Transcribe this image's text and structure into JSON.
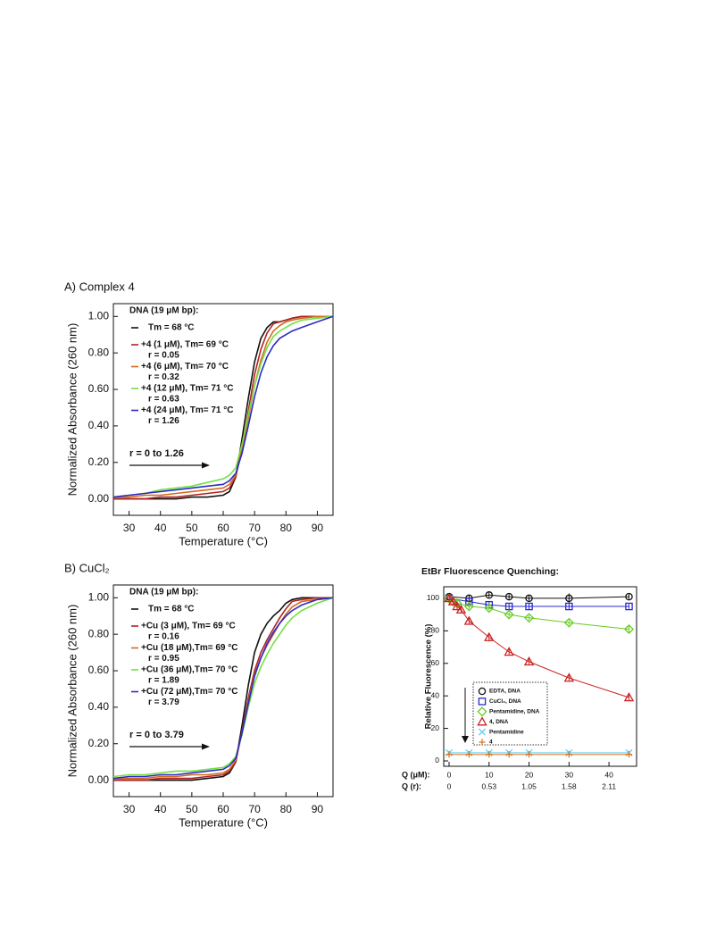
{
  "chart_data": [
    {
      "type": "line",
      "title": "A) Complex 4",
      "xlabel": "Temperature (°C)",
      "ylabel": "Normalized Absorbance (260 nm)",
      "legend_title": "DNA (19 μM bp):",
      "annotation": "r = 0 to 1.26",
      "x": [
        25,
        30,
        35,
        40,
        45,
        50,
        55,
        60,
        62,
        64,
        66,
        68,
        70,
        72,
        74,
        76,
        78,
        80,
        82,
        85,
        90,
        95
      ],
      "xlim": [
        25,
        95
      ],
      "xticks": [
        30,
        40,
        50,
        60,
        70,
        80,
        90
      ],
      "ylim": [
        -0.09,
        1.07
      ],
      "yticks": [
        {
          "value": 0,
          "label": "0.00"
        },
        {
          "value": 0.2,
          "label": "0.20"
        },
        {
          "value": 0.4,
          "label": "0.40"
        },
        {
          "value": 0.6,
          "label": "0.60"
        },
        {
          "value": 0.8,
          "label": "0.80"
        },
        {
          "value": 1,
          "label": "1.00"
        }
      ],
      "series": [
        {
          "name": "Tm = 68 °C",
          "color": "#111111",
          "values": [
            0,
            0,
            0,
            0,
            0,
            0.01,
            0.01,
            0.02,
            0.04,
            0.12,
            0.33,
            0.55,
            0.75,
            0.88,
            0.94,
            0.97,
            0.97,
            0.98,
            0.99,
            1,
            1,
            1
          ]
        },
        {
          "name": "+4 (1 μM), Tm= 69 °C",
          "r": "r = 0.05",
          "color": "#b22222",
          "values": [
            0,
            0,
            0,
            0.01,
            0.01,
            0.02,
            0.03,
            0.04,
            0.06,
            0.12,
            0.28,
            0.48,
            0.68,
            0.82,
            0.91,
            0.96,
            0.97,
            0.98,
            0.99,
            1,
            1,
            1
          ]
        },
        {
          "name": "+4 (6 μM), Tm= 70 °C",
          "r": "r = 0.32",
          "color": "#d2691e",
          "values": [
            0.01,
            0.01,
            0.02,
            0.02,
            0.03,
            0.04,
            0.05,
            0.06,
            0.08,
            0.13,
            0.27,
            0.44,
            0.62,
            0.76,
            0.86,
            0.92,
            0.95,
            0.97,
            0.98,
            0.99,
            1,
            1
          ]
        },
        {
          "name": "+4 (12 μM), Tm= 71 °C",
          "r": "r = 0.63",
          "color": "#72e040",
          "values": [
            0.01,
            0.02,
            0.03,
            0.05,
            0.06,
            0.07,
            0.09,
            0.11,
            0.13,
            0.17,
            0.3,
            0.46,
            0.62,
            0.74,
            0.83,
            0.89,
            0.92,
            0.94,
            0.96,
            0.98,
            0.99,
            1
          ]
        },
        {
          "name": "+4 (24 μM), Tm= 71 °C",
          "r": "r = 1.26",
          "color": "#2b2bc8",
          "values": [
            0.01,
            0.02,
            0.03,
            0.04,
            0.05,
            0.06,
            0.07,
            0.08,
            0.1,
            0.14,
            0.25,
            0.4,
            0.56,
            0.69,
            0.78,
            0.84,
            0.88,
            0.9,
            0.92,
            0.94,
            0.97,
            1
          ]
        }
      ]
    },
    {
      "type": "line",
      "title": "B) CuCl₂",
      "xlabel": "Temperature (°C)",
      "ylabel": "Normalized Absorbance (260 nm)",
      "legend_title": "DNA (19 μM bp):",
      "annotation": "r = 0 to 3.79",
      "x": [
        25,
        30,
        35,
        40,
        45,
        50,
        55,
        60,
        62,
        64,
        66,
        68,
        70,
        72,
        74,
        76,
        78,
        80,
        82,
        85,
        90,
        95
      ],
      "xlim": [
        25,
        95
      ],
      "xticks": [
        30,
        40,
        50,
        60,
        70,
        80,
        90
      ],
      "ylim": [
        -0.09,
        1.07
      ],
      "yticks": [
        {
          "value": 0,
          "label": "0.00"
        },
        {
          "value": 0.2,
          "label": "0.20"
        },
        {
          "value": 0.4,
          "label": "0.40"
        },
        {
          "value": 0.6,
          "label": "0.60"
        },
        {
          "value": 0.8,
          "label": "0.80"
        },
        {
          "value": 1,
          "label": "1.00"
        }
      ],
      "series": [
        {
          "name": "Tm = 68 °C",
          "color": "#111111",
          "values": [
            0,
            0,
            0,
            0,
            0,
            0,
            0.01,
            0.02,
            0.04,
            0.1,
            0.3,
            0.52,
            0.7,
            0.8,
            0.86,
            0.9,
            0.93,
            0.97,
            0.99,
            1,
            1,
            1
          ]
        },
        {
          "name": "+Cu (3 μM), Tm= 69 °C",
          "r": "r = 0.16",
          "color": "#b22222",
          "values": [
            0,
            0,
            0,
            0.01,
            0.01,
            0.01,
            0.02,
            0.03,
            0.05,
            0.1,
            0.27,
            0.45,
            0.6,
            0.7,
            0.77,
            0.83,
            0.89,
            0.94,
            0.98,
            0.99,
            1,
            1
          ]
        },
        {
          "name": "+Cu (18 μM),Tm= 69 °C",
          "r": "r = 0.95",
          "color": "#d2691e",
          "values": [
            0.01,
            0.01,
            0.01,
            0.02,
            0.02,
            0.03,
            0.03,
            0.04,
            0.06,
            0.11,
            0.26,
            0.43,
            0.58,
            0.67,
            0.74,
            0.8,
            0.86,
            0.91,
            0.95,
            0.98,
            0.99,
            1
          ]
        },
        {
          "name": "+Cu (36 μM),Tm= 70 °C",
          "r": "r = 1.89",
          "color": "#72e040",
          "values": [
            0.02,
            0.03,
            0.03,
            0.04,
            0.05,
            0.05,
            0.06,
            0.07,
            0.09,
            0.13,
            0.25,
            0.4,
            0.53,
            0.62,
            0.69,
            0.75,
            0.8,
            0.85,
            0.89,
            0.93,
            0.97,
            1
          ]
        },
        {
          "name": "+Cu (72 μM),Tm= 70 °C",
          "r": "r = 3.79",
          "color": "#2b2bc8",
          "values": [
            0.01,
            0.02,
            0.02,
            0.03,
            0.03,
            0.04,
            0.05,
            0.06,
            0.08,
            0.12,
            0.26,
            0.42,
            0.57,
            0.67,
            0.75,
            0.81,
            0.86,
            0.9,
            0.93,
            0.96,
            0.99,
            1
          ]
        }
      ]
    },
    {
      "type": "scatter",
      "title": "EtBr Fluorescence Quenching:",
      "ylabel": "Relative Fluorescence (%)",
      "xlabel": "Q (μM):",
      "x2label": "Q (r):",
      "xlim": [
        -1.34,
        46.9
      ],
      "xticks": [
        0,
        10,
        20,
        30,
        40
      ],
      "x2ticks": [
        {
          "value": 0,
          "label": "0"
        },
        {
          "value": 10,
          "label": "0.53"
        },
        {
          "value": 20,
          "label": "1.05"
        },
        {
          "value": 30,
          "label": "1.58"
        },
        {
          "value": 40,
          "label": "2.11"
        }
      ],
      "ylim": [
        -3.3,
        107.1
      ],
      "yticks": [
        0,
        20,
        40,
        60,
        80,
        100
      ],
      "series": [
        {
          "name": "EDTA, DNA",
          "color": "#111111",
          "marker": "circle",
          "x": [
            0,
            5,
            10,
            15,
            20,
            30,
            45
          ],
          "values": [
            101,
            100,
            102,
            101,
            100,
            100,
            101
          ],
          "errors": [
            2,
            2,
            1.5,
            1.5,
            1.5,
            3,
            1.5
          ]
        },
        {
          "name": "CuCl₂, DNA",
          "color": "#2a2ad0",
          "marker": "square",
          "x": [
            0,
            5,
            10,
            15,
            20,
            30,
            45
          ],
          "values": [
            100,
            98,
            96,
            95,
            95,
            95,
            95
          ],
          "errors": [
            3,
            2,
            2,
            2,
            2,
            2,
            1.5
          ]
        },
        {
          "name": "Pentamidine, DNA",
          "color": "#66cc22",
          "marker": "diamond",
          "x": [
            0,
            1,
            2,
            5,
            10,
            15,
            20,
            30,
            45
          ],
          "values": [
            100,
            98,
            97,
            95,
            94,
            90,
            88,
            85,
            81
          ],
          "errors": [
            2,
            2,
            2,
            1.5,
            1.5,
            1.5,
            1.5,
            1.5,
            2
          ]
        },
        {
          "name": "4, DNA",
          "color": "#cc2222",
          "marker": "triangle",
          "x": [
            0,
            1,
            2,
            3,
            5,
            10,
            15,
            20,
            30,
            45
          ],
          "values": [
            100,
            98,
            95,
            93,
            86,
            76,
            67,
            61,
            51,
            39
          ],
          "errors": [
            2,
            2,
            2,
            2,
            2,
            2.5,
            2,
            2,
            2,
            2
          ]
        },
        {
          "name": "Pentamidine",
          "color": "#66ccee",
          "marker": "cross",
          "x": [
            0,
            5,
            10,
            15,
            20,
            30,
            45
          ],
          "values": [
            5,
            5,
            5,
            5,
            5,
            5,
            5
          ],
          "errors": [
            1,
            1,
            1,
            1,
            1,
            1,
            1
          ]
        },
        {
          "name": "4",
          "color": "#dd7722",
          "marker": "plus",
          "x": [
            0,
            5,
            10,
            15,
            20,
            30,
            45
          ],
          "values": [
            4,
            4,
            4,
            4,
            4,
            4,
            4
          ],
          "errors": [
            1,
            1,
            1,
            1,
            1,
            1,
            1
          ]
        }
      ]
    }
  ]
}
